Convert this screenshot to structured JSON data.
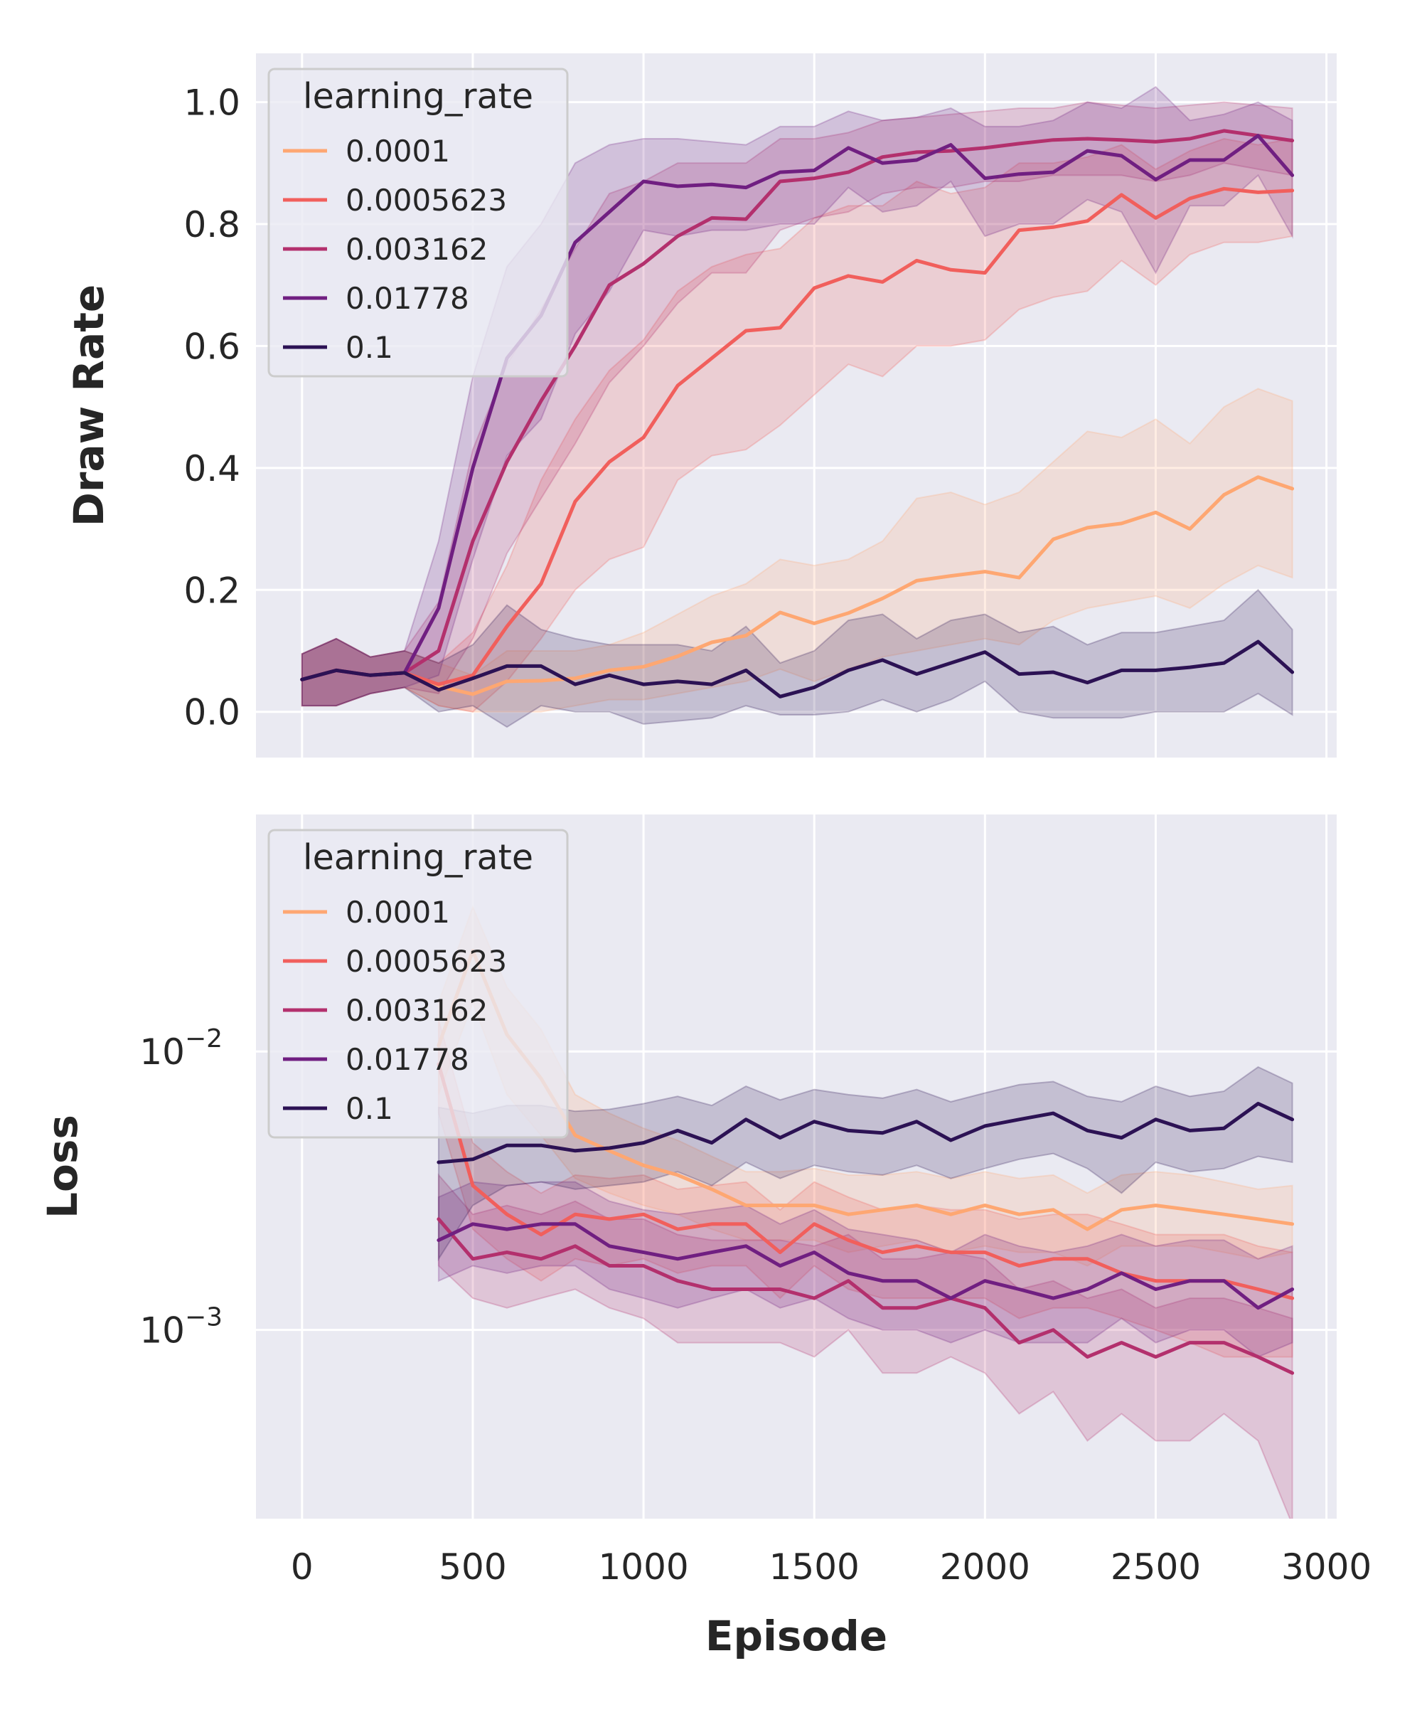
{
  "chart_data": [
    {
      "type": "line",
      "panel": "top",
      "ylabel": "Draw Rate",
      "xlabel": "",
      "xlim": [
        -135,
        3030
      ],
      "ylim": [
        -0.075,
        1.08
      ],
      "yscale": "linear",
      "yticks": [
        0.0,
        0.2,
        0.4,
        0.6,
        0.8,
        1.0
      ],
      "ytick_labels": [
        "0.0",
        "0.2",
        "0.4",
        "0.6",
        "0.8",
        "1.0"
      ],
      "xticks": [
        0,
        500,
        1000,
        1500,
        2000,
        2500,
        3000
      ],
      "grid": true,
      "legend": {
        "title": "learning_rate",
        "placement": "upper-left"
      },
      "series": [
        {
          "name": "0.0001",
          "color": "#fea772",
          "x_start": 0,
          "x_step": 100,
          "values": [
            0.053,
            0.068,
            0.06,
            0.064,
            0.042,
            0.029,
            0.05,
            0.051,
            0.055,
            0.068,
            0.074,
            0.091,
            0.114,
            0.125,
            0.163,
            0.145,
            0.162,
            0.186,
            0.215,
            0.223,
            0.23,
            0.22,
            0.283,
            0.302,
            0.309,
            0.327,
            0.3,
            0.356,
            0.385,
            0.366
          ],
          "lower": [
            0.01,
            0.01,
            0.03,
            0.04,
            0.01,
            0.0,
            0.0,
            0.0,
            0.01,
            0.02,
            0.02,
            0.03,
            0.04,
            0.05,
            0.07,
            0.05,
            0.07,
            0.09,
            0.1,
            0.11,
            0.12,
            0.11,
            0.15,
            0.17,
            0.18,
            0.19,
            0.17,
            0.21,
            0.24,
            0.22
          ],
          "upper": [
            0.095,
            0.12,
            0.09,
            0.1,
            0.08,
            0.06,
            0.1,
            0.1,
            0.1,
            0.11,
            0.13,
            0.16,
            0.19,
            0.21,
            0.25,
            0.24,
            0.25,
            0.28,
            0.35,
            0.36,
            0.34,
            0.36,
            0.41,
            0.46,
            0.45,
            0.48,
            0.44,
            0.5,
            0.53,
            0.51
          ]
        },
        {
          "name": "0.0005623",
          "color": "#f15f5c",
          "x_start": 0,
          "x_step": 100,
          "values": [
            0.053,
            0.068,
            0.06,
            0.064,
            0.045,
            0.06,
            0.14,
            0.21,
            0.345,
            0.41,
            0.45,
            0.535,
            0.58,
            0.625,
            0.63,
            0.695,
            0.715,
            0.705,
            0.74,
            0.725,
            0.72,
            0.79,
            0.795,
            0.805,
            0.848,
            0.81,
            0.842,
            0.858,
            0.852,
            0.855
          ],
          "lower": [
            0.01,
            0.01,
            0.03,
            0.04,
            0.01,
            0.0,
            0.05,
            0.12,
            0.2,
            0.25,
            0.27,
            0.38,
            0.42,
            0.43,
            0.47,
            0.52,
            0.57,
            0.55,
            0.6,
            0.6,
            0.61,
            0.66,
            0.68,
            0.69,
            0.74,
            0.7,
            0.75,
            0.77,
            0.77,
            0.78
          ],
          "upper": [
            0.095,
            0.12,
            0.09,
            0.1,
            0.08,
            0.13,
            0.24,
            0.38,
            0.48,
            0.56,
            0.61,
            0.69,
            0.73,
            0.75,
            0.76,
            0.81,
            0.83,
            0.83,
            0.87,
            0.85,
            0.86,
            0.9,
            0.9,
            0.91,
            0.93,
            0.89,
            0.92,
            0.94,
            0.93,
            0.94
          ]
        },
        {
          "name": "0.003162",
          "color": "#b3306d",
          "x_start": 0,
          "x_step": 100,
          "values": [
            0.053,
            0.068,
            0.06,
            0.064,
            0.1,
            0.28,
            0.41,
            0.51,
            0.6,
            0.7,
            0.735,
            0.78,
            0.81,
            0.808,
            0.87,
            0.875,
            0.885,
            0.91,
            0.918,
            0.92,
            0.925,
            0.932,
            0.938,
            0.94,
            0.938,
            0.935,
            0.94,
            0.953,
            0.945,
            0.937
          ],
          "lower": [
            0.01,
            0.01,
            0.03,
            0.04,
            0.03,
            0.12,
            0.26,
            0.35,
            0.44,
            0.54,
            0.6,
            0.67,
            0.72,
            0.72,
            0.79,
            0.81,
            0.82,
            0.85,
            0.86,
            0.86,
            0.87,
            0.87,
            0.88,
            0.88,
            0.88,
            0.87,
            0.88,
            0.9,
            0.89,
            0.88
          ],
          "upper": [
            0.095,
            0.12,
            0.09,
            0.1,
            0.18,
            0.43,
            0.57,
            0.66,
            0.76,
            0.85,
            0.87,
            0.9,
            0.9,
            0.9,
            0.94,
            0.94,
            0.95,
            0.97,
            0.975,
            0.98,
            0.985,
            0.99,
            0.99,
            1.0,
            0.995,
            0.99,
            0.995,
            1.0,
            0.995,
            0.99
          ]
        },
        {
          "name": "0.01778",
          "color": "#701f81",
          "x_start": 0,
          "x_step": 100,
          "values": [
            0.053,
            0.068,
            0.06,
            0.064,
            0.17,
            0.4,
            0.58,
            0.65,
            0.77,
            0.82,
            0.87,
            0.862,
            0.865,
            0.86,
            0.885,
            0.888,
            0.925,
            0.9,
            0.905,
            0.93,
            0.875,
            0.882,
            0.885,
            0.92,
            0.912,
            0.873,
            0.905,
            0.905,
            0.945,
            0.88
          ],
          "lower": [
            0.01,
            0.01,
            0.03,
            0.04,
            0.06,
            0.25,
            0.42,
            0.48,
            0.62,
            0.69,
            0.79,
            0.78,
            0.79,
            0.79,
            0.8,
            0.8,
            0.86,
            0.82,
            0.83,
            0.87,
            0.78,
            0.8,
            0.8,
            0.84,
            0.82,
            0.72,
            0.83,
            0.83,
            0.88,
            0.78
          ],
          "upper": [
            0.095,
            0.12,
            0.09,
            0.1,
            0.28,
            0.55,
            0.73,
            0.8,
            0.9,
            0.93,
            0.94,
            0.94,
            0.935,
            0.93,
            0.96,
            0.96,
            0.985,
            0.97,
            0.975,
            0.99,
            0.96,
            0.96,
            0.97,
            1.0,
            0.99,
            1.025,
            0.97,
            0.98,
            1.0,
            0.97
          ]
        },
        {
          "name": "0.1",
          "color": "#2c1254",
          "x_start": 0,
          "x_step": 100,
          "values": [
            0.053,
            0.068,
            0.06,
            0.064,
            0.036,
            0.055,
            0.075,
            0.075,
            0.045,
            0.06,
            0.045,
            0.05,
            0.045,
            0.068,
            0.025,
            0.04,
            0.068,
            0.085,
            0.062,
            0.08,
            0.098,
            0.062,
            0.065,
            0.048,
            0.068,
            0.068,
            0.073,
            0.08,
            0.115,
            0.065
          ],
          "lower": [
            0.01,
            0.01,
            0.03,
            0.04,
            0.0,
            0.01,
            -0.025,
            0.01,
            0.0,
            0.0,
            -0.02,
            -0.015,
            -0.01,
            0.01,
            -0.005,
            -0.005,
            0.0,
            0.02,
            0.0,
            0.02,
            0.05,
            0.0,
            -0.01,
            -0.01,
            -0.01,
            0.0,
            0.0,
            0.0,
            0.03,
            -0.005
          ],
          "upper": [
            0.095,
            0.12,
            0.09,
            0.1,
            0.08,
            0.11,
            0.175,
            0.135,
            0.12,
            0.11,
            0.11,
            0.11,
            0.1,
            0.14,
            0.08,
            0.1,
            0.15,
            0.16,
            0.12,
            0.15,
            0.16,
            0.13,
            0.14,
            0.11,
            0.13,
            0.13,
            0.14,
            0.15,
            0.2,
            0.135
          ]
        }
      ]
    },
    {
      "type": "line",
      "panel": "bottom",
      "ylabel": "Loss",
      "xlabel": "Episode",
      "xlim": [
        -135,
        3030
      ],
      "ylim": [
        0.00021,
        0.071
      ],
      "yscale": "log",
      "yticks": [
        0.001,
        0.01
      ],
      "ytick_labels": [
        {
          "base": "10",
          "exp": "−3"
        },
        {
          "base": "10",
          "exp": "−2"
        }
      ],
      "xticks": [
        0,
        500,
        1000,
        1500,
        2000,
        2500,
        3000
      ],
      "xtick_labels": [
        "0",
        "500",
        "1000",
        "1500",
        "2000",
        "2500",
        "3000"
      ],
      "grid": true,
      "legend": {
        "title": "learning_rate",
        "placement": "upper-left"
      },
      "series": [
        {
          "name": "0.0001",
          "color": "#fea772",
          "x_start": 400,
          "x_step": 100,
          "values": [
            0.0105,
            0.023,
            0.0115,
            0.008,
            0.005,
            0.0044,
            0.0039,
            0.0036,
            0.0032,
            0.0028,
            0.0028,
            0.0028,
            0.0026,
            0.0027,
            0.0028,
            0.0026,
            0.0028,
            0.0026,
            0.0027,
            0.0023,
            0.0027,
            0.0028,
            0.0027,
            0.0026,
            0.0025,
            0.0024
          ],
          "lower": [
            0.007,
            0.015,
            0.007,
            0.005,
            0.0035,
            0.0031,
            0.0028,
            0.0026,
            0.0023,
            0.0021,
            0.0021,
            0.0021,
            0.0019,
            0.002,
            0.0021,
            0.0019,
            0.002,
            0.0019,
            0.0019,
            0.0017,
            0.002,
            0.002,
            0.002,
            0.0019,
            0.0018,
            0.0019
          ],
          "upper": [
            0.015,
            0.033,
            0.017,
            0.012,
            0.007,
            0.006,
            0.0053,
            0.0048,
            0.0042,
            0.0037,
            0.0037,
            0.0038,
            0.0036,
            0.0036,
            0.0037,
            0.0035,
            0.0037,
            0.0035,
            0.0036,
            0.0031,
            0.0036,
            0.0037,
            0.0036,
            0.0034,
            0.0032,
            0.0033
          ]
        },
        {
          "name": "0.0005623",
          "color": "#f15f5c",
          "x_start": 400,
          "x_step": 100,
          "values": [
            0.009,
            0.0033,
            0.0026,
            0.0022,
            0.0026,
            0.0025,
            0.0026,
            0.0023,
            0.0024,
            0.0024,
            0.0019,
            0.0024,
            0.0021,
            0.0019,
            0.002,
            0.0019,
            0.0019,
            0.0017,
            0.0018,
            0.0018,
            0.0016,
            0.0015,
            0.0015,
            0.0015,
            0.0014,
            0.0013
          ],
          "lower": [
            0.006,
            0.0023,
            0.0018,
            0.0015,
            0.0018,
            0.0017,
            0.0018,
            0.0016,
            0.0017,
            0.0017,
            0.0013,
            0.0017,
            0.0014,
            0.0013,
            0.0013,
            0.0013,
            0.0013,
            0.0011,
            0.0012,
            0.0012,
            0.0011,
            0.001,
            0.0009,
            0.0008,
            0.0008,
            0.0008
          ],
          "upper": [
            0.013,
            0.0047,
            0.0037,
            0.0031,
            0.0036,
            0.0035,
            0.0036,
            0.0032,
            0.0033,
            0.0034,
            0.0027,
            0.0034,
            0.003,
            0.0027,
            0.0028,
            0.0027,
            0.0027,
            0.0025,
            0.0026,
            0.0026,
            0.0024,
            0.0022,
            0.0022,
            0.0022,
            0.002,
            0.0019
          ]
        },
        {
          "name": "0.003162",
          "color": "#b3306d",
          "x_start": 400,
          "x_step": 100,
          "values": [
            0.0025,
            0.0018,
            0.0019,
            0.0018,
            0.002,
            0.0017,
            0.0017,
            0.0015,
            0.0014,
            0.0014,
            0.0014,
            0.0013,
            0.0015,
            0.0012,
            0.0012,
            0.0013,
            0.0012,
            0.0009,
            0.001,
            0.0008,
            0.0009,
            0.0008,
            0.0009,
            0.0009,
            0.0008,
            0.0007
          ],
          "lower": [
            0.0017,
            0.0013,
            0.0012,
            0.0013,
            0.0014,
            0.0012,
            0.0011,
            0.0009,
            0.0009,
            0.0009,
            0.0009,
            0.0008,
            0.001,
            0.0007,
            0.0007,
            0.0008,
            0.0007,
            0.0005,
            0.0006,
            0.0004,
            0.0005,
            0.0004,
            0.0004,
            0.0005,
            0.0004,
            0.0002
          ],
          "upper": [
            0.0036,
            0.0026,
            0.0028,
            0.0026,
            0.0029,
            0.0025,
            0.0025,
            0.0022,
            0.0021,
            0.0021,
            0.0021,
            0.002,
            0.0022,
            0.0018,
            0.0018,
            0.0019,
            0.0018,
            0.0014,
            0.0015,
            0.0013,
            0.0014,
            0.0012,
            0.0013,
            0.0013,
            0.0012,
            0.0011
          ]
        },
        {
          "name": "0.01778",
          "color": "#701f81",
          "x_start": 400,
          "x_step": 100,
          "values": [
            0.0021,
            0.0024,
            0.0023,
            0.0024,
            0.0024,
            0.002,
            0.0019,
            0.0018,
            0.0019,
            0.002,
            0.0017,
            0.0019,
            0.0016,
            0.0015,
            0.0015,
            0.0013,
            0.0015,
            0.0014,
            0.0013,
            0.0014,
            0.0016,
            0.0014,
            0.0015,
            0.0015,
            0.0012,
            0.0014
          ],
          "lower": [
            0.0015,
            0.0017,
            0.0016,
            0.0017,
            0.0017,
            0.0014,
            0.0013,
            0.0012,
            0.0013,
            0.0014,
            0.0012,
            0.0013,
            0.0011,
            0.001,
            0.001,
            0.0009,
            0.001,
            0.0009,
            0.0009,
            0.0009,
            0.0011,
            0.0009,
            0.001,
            0.001,
            0.0008,
            0.0009
          ],
          "upper": [
            0.003,
            0.0034,
            0.0033,
            0.0034,
            0.0034,
            0.0029,
            0.0027,
            0.0026,
            0.0027,
            0.0028,
            0.0024,
            0.0027,
            0.0023,
            0.0022,
            0.0021,
            0.0019,
            0.0022,
            0.002,
            0.0019,
            0.002,
            0.0022,
            0.002,
            0.0021,
            0.0021,
            0.0018,
            0.002
          ]
        },
        {
          "name": "0.1",
          "color": "#2c1254",
          "x_start": 400,
          "x_step": 100,
          "values": [
            0.004,
            0.0041,
            0.0046,
            0.0046,
            0.0044,
            0.0045,
            0.0047,
            0.0052,
            0.0047,
            0.0057,
            0.0049,
            0.0056,
            0.0052,
            0.0051,
            0.0056,
            0.0048,
            0.0054,
            0.0057,
            0.006,
            0.0052,
            0.0049,
            0.0057,
            0.0052,
            0.0053,
            0.0065,
            0.0057
          ],
          "lower": [
            0.0018,
            0.0028,
            0.0033,
            0.0034,
            0.0032,
            0.0033,
            0.0034,
            0.0037,
            0.0033,
            0.004,
            0.0035,
            0.0039,
            0.0037,
            0.0036,
            0.0039,
            0.0035,
            0.0038,
            0.0041,
            0.0043,
            0.0038,
            0.0031,
            0.004,
            0.0037,
            0.0038,
            0.0042,
            0.004
          ],
          "upper": [
            0.0063,
            0.006,
            0.0064,
            0.0064,
            0.0061,
            0.0062,
            0.0065,
            0.0069,
            0.0064,
            0.0075,
            0.0067,
            0.0073,
            0.007,
            0.0068,
            0.0073,
            0.0066,
            0.0071,
            0.0076,
            0.0078,
            0.0069,
            0.0066,
            0.0075,
            0.0069,
            0.0072,
            0.0088,
            0.0077
          ]
        }
      ]
    }
  ]
}
